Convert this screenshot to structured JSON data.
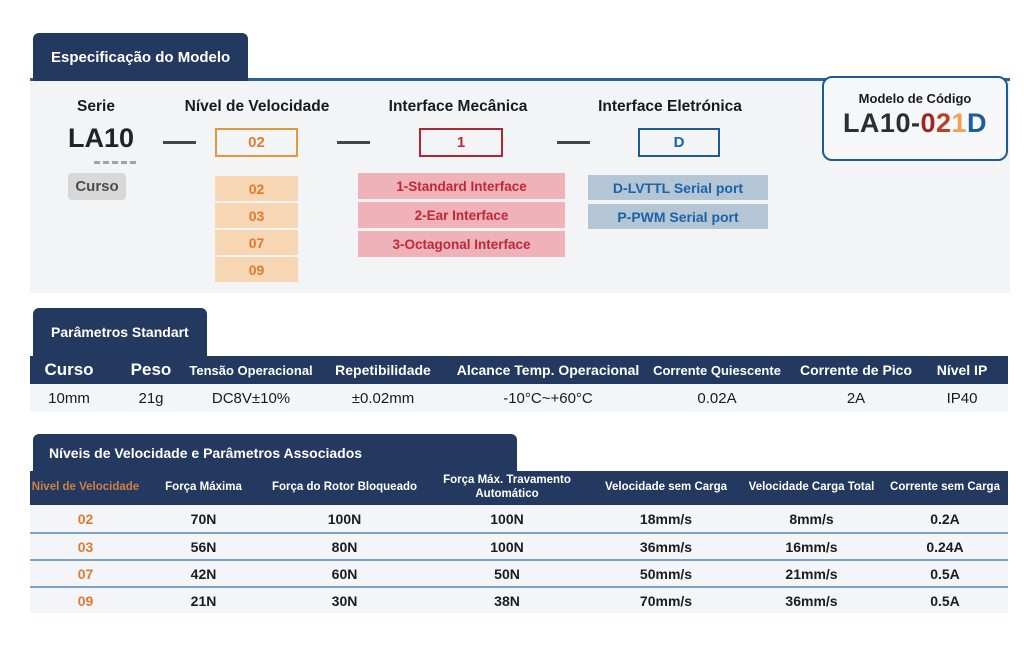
{
  "sections": {
    "model_spec": {
      "title": "Especificação do Modelo",
      "serie": {
        "label": "Serie",
        "value": "LA10",
        "note": "Curso"
      },
      "speed": {
        "label": "Nível de Velocidade",
        "value": "02",
        "options": [
          "02",
          "03",
          "07",
          "09"
        ]
      },
      "mechanical": {
        "label": "Interface Mecânica",
        "value": "1",
        "options": [
          "1-Standard Interface",
          "2-Ear Interface",
          "3-Octagonal Interface"
        ]
      },
      "electronic": {
        "label": "Interface Eletrónica",
        "value": "D",
        "options": [
          "D-LVTTL Serial port",
          "P-PWM Serial port"
        ]
      },
      "code_box": {
        "label": "Modelo de Código",
        "code": "LA10-021D",
        "parts": [
          {
            "text": "LA10-",
            "color": "#2e2e2e"
          },
          {
            "text": "0",
            "color": "#a02421"
          },
          {
            "text": "2",
            "color": "#c23b27"
          },
          {
            "text": "1",
            "color": "#f0a152"
          },
          {
            "text": "D",
            "color": "#1c5ca0"
          }
        ]
      }
    },
    "standard_params": {
      "title": "Parâmetros Standart",
      "headers": [
        "Curso",
        "Peso",
        "Tensão Operacional",
        "Repetibilidade",
        "Alcance Temp. Operacional",
        "Corrente Quiescente",
        "Corrente de Pico",
        "Nível IP"
      ],
      "values": [
        "10mm",
        "21g",
        "DC8V±10%",
        "±0.02mm",
        "-10°C~+60°C",
        "0.02A",
        "2A",
        "IP40"
      ]
    },
    "speed_table": {
      "title": "Níveis de Velocidade e Parâmetros Associados",
      "headers": [
        "Nivel de Velocidade",
        "Força Máxima",
        "Força do Rotor Bloqueado",
        "Força Máx. Travamento Automático",
        "Velocidade sem Carga",
        "Velocidade Carga Total",
        "Corrente sem Carga"
      ],
      "rows": [
        [
          "02",
          "70N",
          "100N",
          "100N",
          "18mm/s",
          "8mm/s",
          "0.2A"
        ],
        [
          "03",
          "56N",
          "80N",
          "100N",
          "36mm/s",
          "16mm/s",
          "0.24A"
        ],
        [
          "07",
          "42N",
          "60N",
          "50N",
          "50mm/s",
          "21mm/s",
          "0.5A"
        ],
        [
          "09",
          "21N",
          "30N",
          "38N",
          "70mm/s",
          "36mm/s",
          "0.5A"
        ]
      ]
    }
  },
  "colors": {
    "navy": "#23395f",
    "panel_bg": "#f3f4f6",
    "panel_border_blue": "#2c6396",
    "orange_text": "#e07b2e",
    "orange_border": "#e8963e",
    "orange_bg": "#f7d6b3",
    "red_text": "#c0273a",
    "red_border": "#b22633",
    "pink_bg": "#efb2b8",
    "blue_text": "#1a63a6",
    "blue_border": "#1e5b94",
    "blue_bg": "#b4c6d6",
    "chip_bg": "#d8d8d8",
    "chip_text": "#4d4d4d",
    "row_bg": "#f3f5f8",
    "row_divider": "#7fa3c0",
    "header_orange": "#cf8047"
  }
}
